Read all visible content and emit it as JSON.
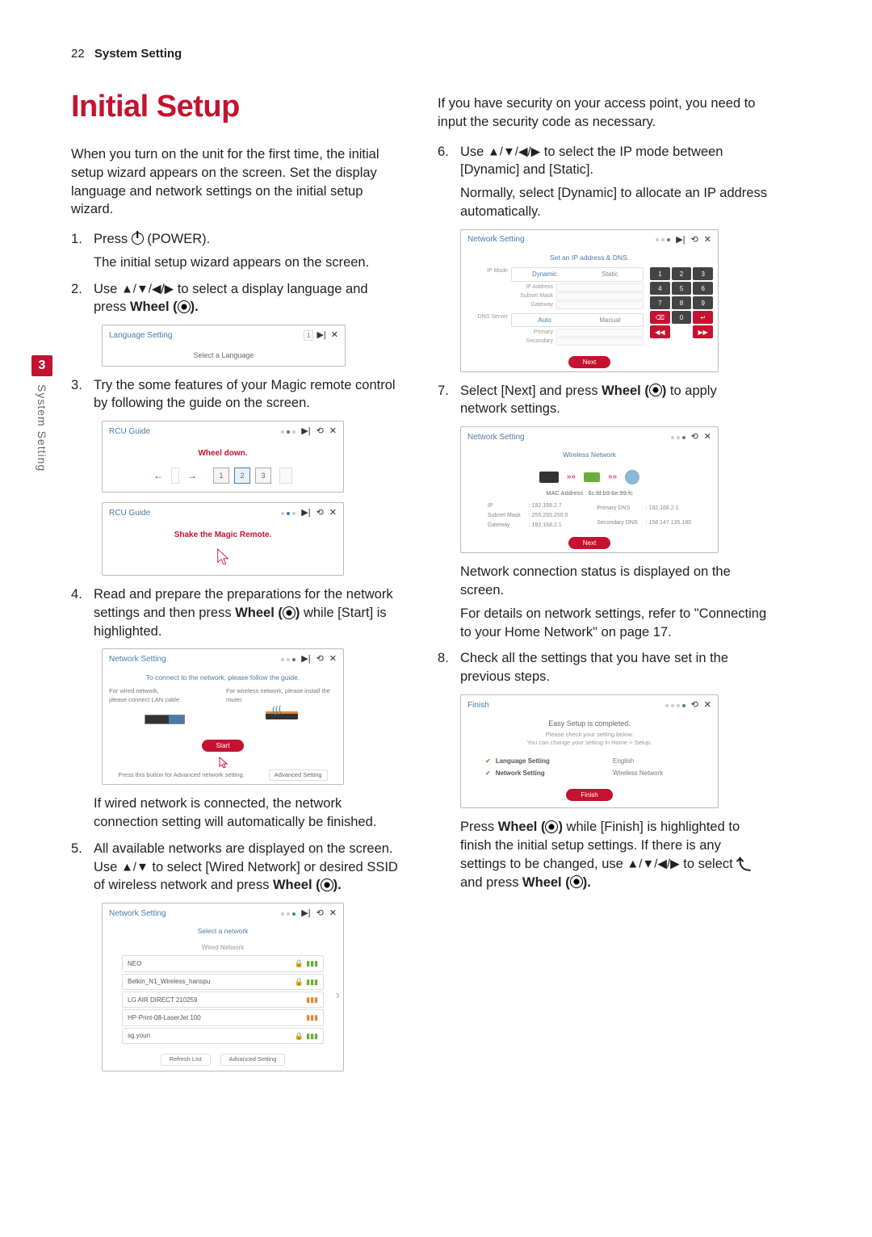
{
  "header": {
    "page_num": "22",
    "section": "System Setting"
  },
  "side_tab": {
    "num": "3",
    "text": "System Setting"
  },
  "title": "Initial Setup",
  "intro": "When you turn on the unit for the first time, the initial setup wizard appears on the screen. Set the display language and network settings on the initial setup wizard.",
  "steps_left": {
    "s1a": "Press ",
    "s1b": " (POWER).",
    "s1sub": "The initial setup wizard appears on the screen.",
    "s2a": "Use ",
    "s2arrows": "▲/▼/◀/▶",
    "s2b": " to select a display language and press ",
    "s2c": "Wheel (",
    "s2d": ").",
    "s3": "Try the some features of your Magic remote control by following the guide on the screen.",
    "s4a": "Read and prepare the preparations for the network settings and then press ",
    "s4b": "Wheel (",
    "s4c": ")",
    "s4d": " while [Start] is highlighted.",
    "s4sub": "If wired network is connected, the network connection setting will automatically be finished.",
    "s5a": "All available networks are displayed on the screen. Use ",
    "s5arrows": "▲/▼",
    "s5b": " to select [Wired Network] or desired SSID of wireless network and press ",
    "s5c": "Wheel (",
    "s5d": ")."
  },
  "right_intro": "If you have security on your access point, you need to input the security code as necessary.",
  "steps_right": {
    "s6a": "Use ",
    "s6arrows": "▲/▼/◀/▶",
    "s6b": " to select the IP mode between [Dynamic] and [Static].",
    "s6sub": "Normally, select [Dynamic] to allocate an IP address automatically.",
    "s7a": "Select [Next] and press ",
    "s7b": "Wheel (",
    "s7c": ")",
    "s7d": " to apply network settings.",
    "s7sub1": "Network connection status is displayed on the screen.",
    "s7sub2": "For details on network settings, refer to \"Connecting to your Home Network\" on page 17.",
    "s8": "Check all the settings that you have set in the previous steps.",
    "s8suba": "Press ",
    "s8subb": "Wheel (",
    "s8subc": ")",
    "s8subd": " while [Finish] is highlighted to finish the initial setup settings. If there is any settings to be changed, use ",
    "s8arrows": "▲/▼/◀/▶",
    "s8sube": " to select ",
    "s8subf": " and press ",
    "s8subg": "Wheel (",
    "s8subh": ")."
  },
  "scr_lang": {
    "title": "Language Setting",
    "sub": "Select a Language",
    "pager": "1"
  },
  "scr_rcu1": {
    "title": "RCU Guide",
    "text": "Wheel down."
  },
  "scr_rcu2": {
    "title": "RCU Guide",
    "text": "Shake the Magic Remote."
  },
  "scr_nw_guide": {
    "title": "Network Setting",
    "sub": "To connect to the network, please follow the guide.",
    "left_txt": "For wired network,\nplease connect LAN cable.",
    "right_txt": "For wireless network, please install the router.",
    "start": "Start",
    "hint": "Press this button for Advanced network setting.",
    "adv": "Advanced Setting"
  },
  "scr_nw_list": {
    "title": "Network Setting",
    "sub": "Select a network",
    "wired": "Wired Network",
    "items": [
      {
        "name": "NEO",
        "lock": true,
        "sig": "g"
      },
      {
        "name": "Belkin_N1_Wireless_hanspu",
        "lock": true,
        "sig": "g"
      },
      {
        "name": "LG AIR DIRECT 210259",
        "lock": false,
        "sig": "o"
      },
      {
        "name": "HP-Print-08-LaserJet 100",
        "lock": false,
        "sig": "o"
      },
      {
        "name": "sg.youn",
        "lock": true,
        "sig": "g"
      }
    ],
    "refresh": "Refresh List",
    "adv": "Advanced Setting"
  },
  "scr_ip": {
    "title": "Network Setting",
    "sub": "Set an IP address & DNS.",
    "ip_mode": "IP Mode",
    "dynamic": "Dynamic",
    "static": "Static",
    "ip_addr": "IP Address",
    "subnet": "Subnet Mask",
    "gateway": "Gateway",
    "dns": "DNS Server",
    "auto": "Auto",
    "manual": "Manual",
    "primary": "Primary",
    "secondary": "Secondary",
    "next": "Next",
    "keys": [
      [
        "1",
        "2",
        "3"
      ],
      [
        "4",
        "5",
        "6"
      ],
      [
        "7",
        "8",
        "9"
      ],
      [
        "⌫",
        "0",
        "↵"
      ],
      [
        "◀◀",
        "",
        "▶▶"
      ]
    ]
  },
  "scr_wi": {
    "title": "Network Setting",
    "sub": "Wireless Network",
    "mac_lbl": "MAC Address :",
    "mac": "6c:fd:b9:6e:99:fc",
    "rows_l": [
      [
        "IP",
        ": 192.168.2.7"
      ],
      [
        "Subnet Mask",
        ": 255.255.255.0"
      ],
      [
        "Gateway",
        ": 192.168.2.1"
      ]
    ],
    "rows_r": [
      [
        "Primary DNS",
        ": 192.168.2.1"
      ],
      [
        "Secondary DNS",
        ": 156.147.135.180"
      ]
    ],
    "next": "Next"
  },
  "scr_fin": {
    "title": "Finish",
    "head": "Easy Setup is completed.",
    "sub1": "Please check your setting below.",
    "sub2": "You can change your setting in Home > Setup.",
    "rows": [
      {
        "lbl": "Language Setting",
        "val": "English"
      },
      {
        "lbl": "Network Setting",
        "val": "Wireless Network"
      }
    ],
    "finish": "Finish"
  },
  "colors": {
    "brand": "#c41230",
    "link": "#4a7ba6",
    "text": "#231f20"
  }
}
